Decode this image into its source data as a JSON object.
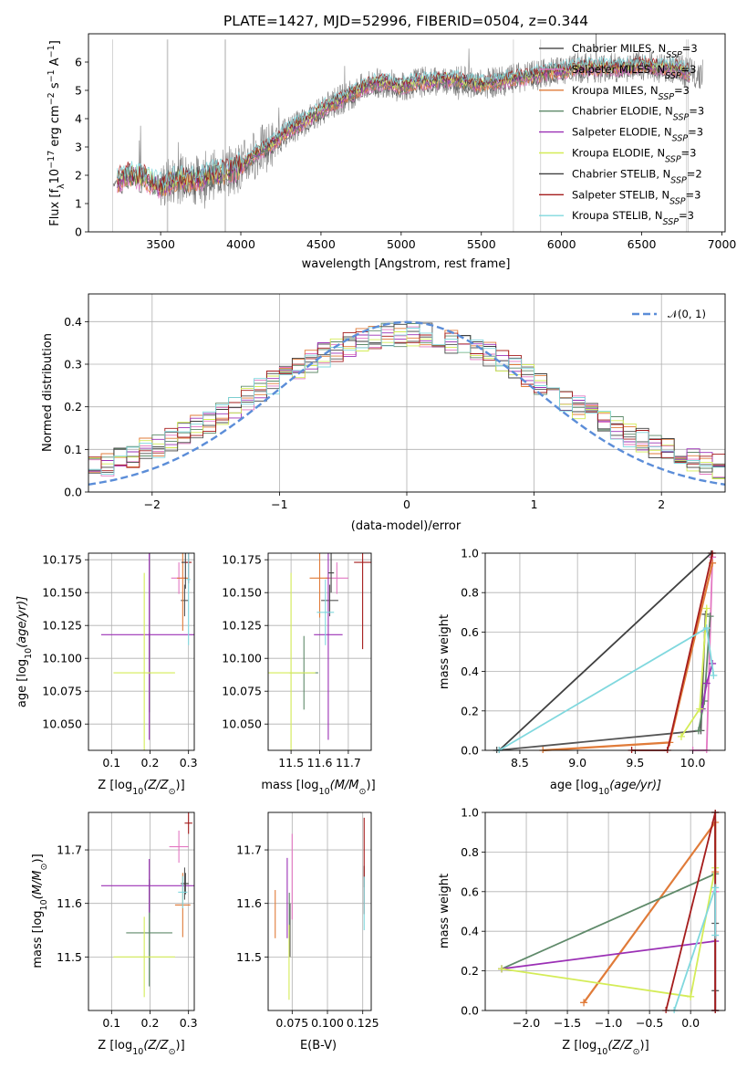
{
  "figure": {
    "title": "PLATE=1427, MJD=52996, FIBERID=0504, z=0.344"
  },
  "models": [
    {
      "name": "Chabrier MILES, N",
      "nssp": "3",
      "color": "#555555"
    },
    {
      "name": "Salpeter MILES, N",
      "nssp": "3",
      "color": "#e377c2"
    },
    {
      "name": "Kroupa MILES, N",
      "nssp": "3",
      "color": "#e07b39"
    },
    {
      "name": "Chabrier ELODIE, N",
      "nssp": "3",
      "color": "#5f8a6a"
    },
    {
      "name": "Salpeter ELODIE, N",
      "nssp": "3",
      "color": "#9b30b5"
    },
    {
      "name": "Kroupa ELODIE, N",
      "nssp": "3",
      "color": "#d4ec57"
    },
    {
      "name": "Chabrier STELIB, N",
      "nssp": "2",
      "color": "#404040"
    },
    {
      "name": "Salpeter STELIB, N",
      "nssp": "3",
      "color": "#a51c1c"
    },
    {
      "name": "Kroupa STELIB, N",
      "nssp": "3",
      "color": "#80d8de"
    }
  ],
  "legend_sub": "SSP",
  "chart_data": [
    {
      "id": "spectrum",
      "type": "line",
      "xlabel": "wavelength [Angstrom, rest frame]",
      "ylabel": "Flux [f",
      "ylabel_parts": {
        "sub": "λ",
        "mid": "10",
        "sup1": "−17",
        "unit": " erg cm",
        "sup2": "−2",
        "s": " s",
        "sup3": "−1",
        "a": " A",
        "sup4": "−1",
        "close": "]"
      },
      "xlim": [
        3050,
        7020
      ],
      "ylim": [
        0,
        7
      ],
      "xticks": [
        "3500",
        "4000",
        "4500",
        "5000",
        "5500",
        "6000",
        "6500",
        "7000"
      ],
      "yticks": [
        "0",
        "1",
        "2",
        "3",
        "4",
        "5",
        "6"
      ],
      "legend": "top-right",
      "grid": false,
      "data_color": "#808080",
      "continuum_x": [
        3200,
        3300,
        3400,
        3500,
        3600,
        3700,
        3800,
        3900,
        4000,
        4100,
        4200,
        4300,
        4400,
        4500,
        4600,
        4700,
        4800,
        4900,
        5000,
        5100,
        5200,
        5300,
        5400,
        5500,
        5600,
        5700,
        5800,
        5900,
        6000,
        6100,
        6200,
        6300,
        6400,
        6500,
        6600,
        6700,
        6800
      ],
      "continuum_y": [
        1.7,
        2.0,
        1.9,
        1.6,
        1.9,
        1.8,
        2.0,
        2.1,
        2.3,
        2.8,
        3.1,
        3.6,
        3.9,
        4.3,
        4.6,
        4.9,
        5.2,
        5.3,
        5.1,
        5.3,
        5.3,
        5.4,
        5.3,
        5.2,
        5.3,
        5.4,
        5.5,
        5.6,
        5.7,
        5.8,
        5.8,
        5.8,
        5.8,
        5.9,
        5.8,
        5.8,
        5.6
      ]
    },
    {
      "id": "residuals",
      "type": "bar",
      "xlabel": "(data-model)/error",
      "ylabel": "Normed distribution",
      "xlim": [
        -2.5,
        2.5
      ],
      "ylim": [
        0,
        0.465
      ],
      "xticks": [
        "−2",
        "−1",
        "0",
        "1",
        "2"
      ],
      "yticks": [
        "0.0",
        "0.1",
        "0.2",
        "0.3",
        "0.4"
      ],
      "legend": "top-right",
      "legend_label": "𝒩(0, 1)",
      "gauss_color": "#5b8dd8",
      "grid": true
    },
    {
      "id": "age-vs-Z",
      "type": "scatter",
      "xlabel": "Z [log",
      "xlabel_tail": "(Z/Z",
      "ylabel": "age  [log",
      "ylabel_tail": "(age/yr)]",
      "xlim": [
        0.04,
        0.315
      ],
      "ylim": [
        10.03,
        10.18
      ],
      "xticks": [
        "0.1",
        "0.2",
        "0.3"
      ],
      "yticks": [
        "10.050",
        "10.075",
        "10.100",
        "10.125",
        "10.150",
        "10.175"
      ],
      "points": [
        {
          "x": 0.29,
          "y": 10.144,
          "xerr": 0.01,
          "yerr": 0.012
        },
        {
          "x": 0.275,
          "y": 10.161,
          "xerr": 0.02,
          "yerr": 0.012
        },
        {
          "x": 0.285,
          "y": 10.161,
          "xerr": 0.015,
          "yerr": 0.04
        },
        {
          "x": 0.198,
          "y": 10.089,
          "xerr": 0.006,
          "yerr": 0.03
        },
        {
          "x": 0.198,
          "y": 10.118,
          "xerr": 0.125,
          "yerr": 0.08
        },
        {
          "x": 0.185,
          "y": 10.089,
          "xerr": 0.08,
          "yerr": 0.076
        },
        {
          "x": 0.292,
          "y": 10.173,
          "xerr": 0.01,
          "yerr": 0.02
        },
        {
          "x": 0.3,
          "y": 10.173,
          "xerr": 0.008,
          "yerr": 0.016
        },
        {
          "x": 0.3,
          "y": 10.16,
          "xerr": 0.005,
          "yerr": 0.05
        }
      ]
    },
    {
      "id": "age-vs-mass",
      "type": "scatter",
      "xlabel": "mass [log",
      "xlabel_tail": "(M/M",
      "ylabel": "",
      "xlim": [
        11.42,
        11.78
      ],
      "ylim": [
        10.03,
        10.18
      ],
      "xticks": [
        "11.5",
        "11.6",
        "11.7"
      ],
      "yticks": [
        "10.050",
        "10.075",
        "10.100",
        "10.125",
        "10.150",
        "10.175"
      ],
      "points": [
        {
          "x": 11.635,
          "y": 10.144,
          "xerr": 0.03,
          "yerr": 0.012
        },
        {
          "x": 11.66,
          "y": 10.161,
          "xerr": 0.04,
          "yerr": 0.012
        },
        {
          "x": 11.6,
          "y": 10.161,
          "xerr": 0.035,
          "yerr": 0.03
        },
        {
          "x": 11.545,
          "y": 10.089,
          "xerr": 0.05,
          "yerr": 0.028
        },
        {
          "x": 11.63,
          "y": 10.118,
          "xerr": 0.05,
          "yerr": 0.08
        },
        {
          "x": 11.5,
          "y": 10.089,
          "xerr": 0.085,
          "yerr": 0.076
        },
        {
          "x": 11.64,
          "y": 10.165,
          "xerr": 0.01,
          "yerr": 0.015
        },
        {
          "x": 11.75,
          "y": 10.173,
          "xerr": 0.03,
          "yerr": 0.066
        },
        {
          "x": 11.62,
          "y": 10.135,
          "xerr": 0.03,
          "yerr": 0.025
        }
      ]
    },
    {
      "id": "weight-vs-age",
      "type": "line",
      "xlabel": "age  [log",
      "xlabel_tail": "(age/yr)]",
      "ylabel": "mass weight",
      "xlim": [
        8.2,
        10.28
      ],
      "ylim": [
        0,
        1
      ],
      "xticks": [
        "8.5",
        "9.0",
        "9.5",
        "10.0"
      ],
      "yticks": [
        "0.0",
        "0.2",
        "0.4",
        "0.6",
        "0.8",
        "1.0"
      ],
      "series": [
        {
          "x": [
            8.3,
            10.07,
            10.11
          ],
          "y": [
            0.0,
            0.1,
            0.69
          ]
        },
        {
          "x": [
            10.0,
            10.12,
            10.17
          ],
          "y": [
            0.0,
            0.0,
            0.98
          ]
        },
        {
          "x": [
            8.7,
            9.8,
            10.17
          ],
          "y": [
            0.0,
            0.04,
            0.95
          ]
        },
        {
          "x": [
            10.05,
            10.1,
            10.15
          ],
          "y": [
            0.1,
            0.25,
            0.68
          ]
        },
        {
          "x": [
            10.08,
            10.12,
            10.17
          ],
          "y": [
            0.21,
            0.34,
            0.44
          ]
        },
        {
          "x": [
            9.9,
            10.06,
            10.12
          ],
          "y": [
            0.07,
            0.21,
            0.72
          ]
        },
        {
          "x": [
            8.32,
            10.16
          ],
          "y": [
            0.0,
            1.0
          ]
        },
        {
          "x": [
            9.47,
            9.78,
            10.17
          ],
          "y": [
            0.0,
            0.0,
            1.0
          ]
        },
        {
          "x": [
            8.32,
            10.12,
            10.18
          ],
          "y": [
            0.0,
            0.62,
            0.38
          ]
        }
      ]
    },
    {
      "id": "mass-vs-Z",
      "type": "scatter",
      "xlabel": "Z [log",
      "xlabel_tail": "(Z/Z",
      "ylabel": "mass [log",
      "ylabel_tail": "(M/M",
      "xlim": [
        0.04,
        0.315
      ],
      "ylim": [
        11.4,
        11.77
      ],
      "xticks": [
        "0.1",
        "0.2",
        "0.3"
      ],
      "yticks": [
        "11.5",
        "11.6",
        "11.7"
      ],
      "points": [
        {
          "x": 0.29,
          "y": 11.637,
          "xerr": 0.01,
          "yerr": 0.03
        },
        {
          "x": 0.275,
          "y": 11.706,
          "xerr": 0.025,
          "yerr": 0.03
        },
        {
          "x": 0.285,
          "y": 11.597,
          "xerr": 0.02,
          "yerr": 0.06
        },
        {
          "x": 0.198,
          "y": 11.545,
          "xerr": 0.06,
          "yerr": 0.1
        },
        {
          "x": 0.198,
          "y": 11.633,
          "xerr": 0.125,
          "yerr": 0.05
        },
        {
          "x": 0.185,
          "y": 11.5,
          "xerr": 0.08,
          "yerr": 0.075
        },
        {
          "x": 0.292,
          "y": 11.637,
          "xerr": 0.008,
          "yerr": 0.02
        },
        {
          "x": 0.3,
          "y": 11.75,
          "xerr": 0.01,
          "yerr": 0.02
        },
        {
          "x": 0.285,
          "y": 11.621,
          "xerr": 0.012,
          "yerr": 0.03
        }
      ]
    },
    {
      "id": "mass-vs-EBV",
      "type": "scatter",
      "xlabel": "E(B-V)",
      "ylabel": "",
      "xlim": [
        0.058,
        0.131
      ],
      "ylim": [
        11.4,
        11.77
      ],
      "xticks": [
        "0.075",
        "0.100",
        "0.125"
      ],
      "yticks": [
        "11.5",
        "11.6",
        "11.7"
      ],
      "points": [
        {
          "x": 0.0735,
          "y": 11.55,
          "xerr": 0,
          "yerr": 0.05
        },
        {
          "x": 0.075,
          "y": 11.65,
          "xerr": 0,
          "yerr": 0.08
        },
        {
          "x": 0.063,
          "y": 11.58,
          "xerr": 0,
          "yerr": 0.045
        },
        {
          "x": 0.073,
          "y": 11.58,
          "xerr": 0,
          "yerr": 0.04
        },
        {
          "x": 0.0715,
          "y": 11.61,
          "xerr": 0,
          "yerr": 0.075
        },
        {
          "x": 0.0728,
          "y": 11.49,
          "xerr": 0,
          "yerr": 0.07
        },
        {
          "x": 0.126,
          "y": 11.65,
          "xerr": 0,
          "yerr": 0.02
        },
        {
          "x": 0.126,
          "y": 11.67,
          "xerr": 0,
          "yerr": 0.09
        },
        {
          "x": 0.126,
          "y": 11.6,
          "xerr": 0,
          "yerr": 0.05
        }
      ]
    },
    {
      "id": "weight-vs-Z",
      "type": "line",
      "xlabel": "Z [log",
      "xlabel_tail": "(Z/Z",
      "ylabel": "mass weight",
      "xlim": [
        -2.5,
        0.42
      ],
      "ylim": [
        0,
        1
      ],
      "xticks": [
        "−2.0",
        "−1.5",
        "−1.0",
        "−0.5",
        "0.0"
      ],
      "yticks": [
        "0.0",
        "0.2",
        "0.4",
        "0.6",
        "0.8",
        "1.0"
      ],
      "series": [
        {
          "x": [
            0.3,
            0.3,
            0.3
          ],
          "y": [
            0.0,
            0.1,
            0.44
          ]
        },
        {
          "x": [
            0.3,
            0.3
          ],
          "y": [
            0.0,
            0.6
          ]
        },
        {
          "x": [
            -1.3,
            0.3,
            0.3
          ],
          "y": [
            0.04,
            0.95,
            0.7
          ]
        },
        {
          "x": [
            -2.3,
            0.3
          ],
          "y": [
            0.21,
            0.69
          ]
        },
        {
          "x": [
            -2.3,
            0.3
          ],
          "y": [
            0.21,
            0.35
          ]
        },
        {
          "x": [
            -2.3,
            0.0,
            0.3
          ],
          "y": [
            0.21,
            0.07,
            0.72
          ]
        },
        {
          "x": [
            0.3,
            0.3
          ],
          "y": [
            0.0,
            1.0
          ]
        },
        {
          "x": [
            -0.3,
            0.3,
            0.3
          ],
          "y": [
            0.0,
            1.0,
            0.0
          ]
        },
        {
          "x": [
            -0.2,
            0.3,
            0.3
          ],
          "y": [
            0.0,
            0.62,
            0.38
          ]
        }
      ]
    }
  ]
}
